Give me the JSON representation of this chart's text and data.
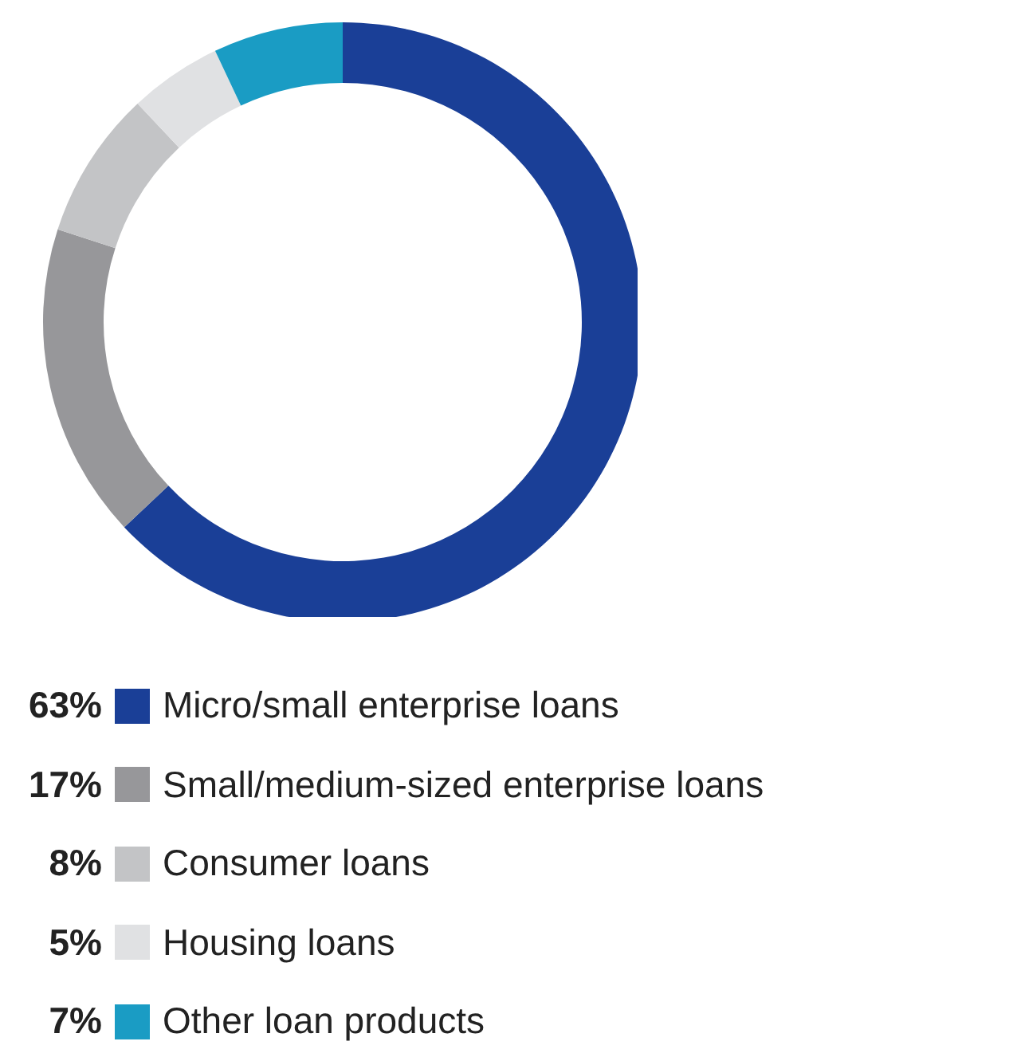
{
  "chart_data": {
    "type": "donut",
    "categories": [
      "Micro/small enterprise loans",
      "Small/medium-sized enterprise loans",
      "Consumer loans",
      "Housing loans",
      "Other loan products"
    ],
    "values": [
      63,
      17,
      8,
      5,
      7
    ],
    "value_labels": [
      "63%",
      "17%",
      "8%",
      "5%",
      "7%"
    ],
    "colors": [
      "#1a3f97",
      "#97979a",
      "#c3c4c6",
      "#e0e1e3",
      "#1a9cc4"
    ],
    "legend": "bottom"
  }
}
